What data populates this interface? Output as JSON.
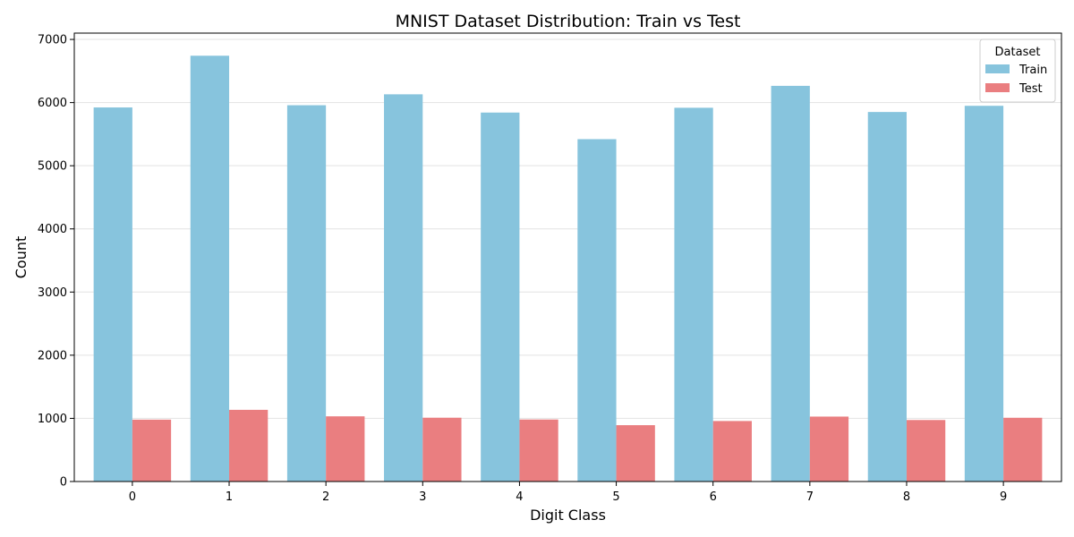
{
  "chart_data": {
    "type": "bar",
    "title": "MNIST Dataset Distribution: Train vs Test",
    "xlabel": "Digit Class",
    "ylabel": "Count",
    "categories": [
      "0",
      "1",
      "2",
      "3",
      "4",
      "5",
      "6",
      "7",
      "8",
      "9"
    ],
    "series": [
      {
        "name": "Train",
        "color": "#87c4dd",
        "values": [
          5923,
          6742,
          5958,
          6131,
          5842,
          5421,
          5918,
          6265,
          5851,
          5949
        ]
      },
      {
        "name": "Test",
        "color": "#ea7e80",
        "values": [
          980,
          1135,
          1032,
          1010,
          982,
          892,
          958,
          1028,
          974,
          1009
        ]
      }
    ],
    "ylim": [
      0,
      7100
    ],
    "yticks": [
      0,
      1000,
      2000,
      3000,
      4000,
      5000,
      6000,
      7000
    ],
    "grid": "horizontal",
    "legend": {
      "title": "Dataset",
      "position": "top-right"
    }
  }
}
